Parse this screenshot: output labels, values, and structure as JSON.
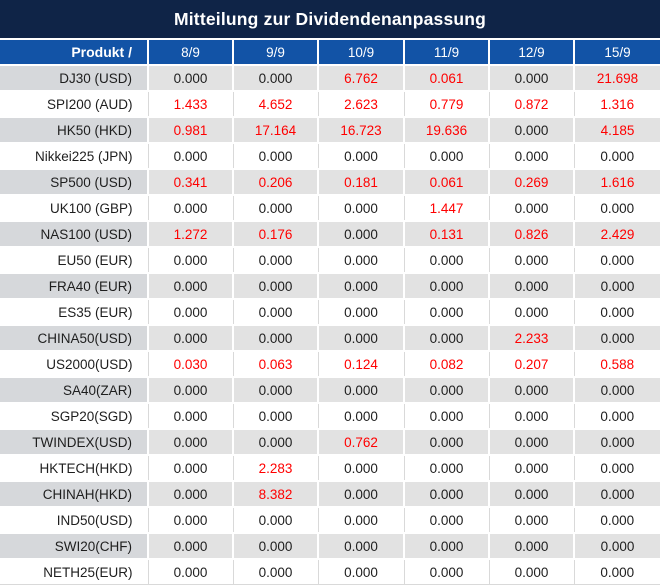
{
  "chart_data": {
    "type": "table",
    "title": "Mitteilung zur Dividendenanpassung",
    "columns": [
      "Produkt /",
      "8/9",
      "9/9",
      "10/9",
      "11/9",
      "12/9",
      "15/9"
    ],
    "rows": [
      {
        "product": "DJ30 (USD)",
        "values": [
          "0.000",
          "0.000",
          "6.762",
          "0.061",
          "0.000",
          "21.698"
        ],
        "red_flags": [
          false,
          false,
          true,
          true,
          false,
          true
        ]
      },
      {
        "product": "SPI200 (AUD)",
        "values": [
          "1.433",
          "4.652",
          "2.623",
          "0.779",
          "0.872",
          "1.316"
        ],
        "red_flags": [
          true,
          true,
          true,
          true,
          true,
          true
        ]
      },
      {
        "product": "HK50 (HKD)",
        "values": [
          "0.981",
          "17.164",
          "16.723",
          "19.636",
          "0.000",
          "4.185"
        ],
        "red_flags": [
          true,
          true,
          true,
          true,
          false,
          true
        ]
      },
      {
        "product": "Nikkei225 (JPN)",
        "values": [
          "0.000",
          "0.000",
          "0.000",
          "0.000",
          "0.000",
          "0.000"
        ],
        "red_flags": [
          false,
          false,
          false,
          false,
          false,
          false
        ]
      },
      {
        "product": "SP500 (USD)",
        "values": [
          "0.341",
          "0.206",
          "0.181",
          "0.061",
          "0.269",
          "1.616"
        ],
        "red_flags": [
          true,
          true,
          true,
          true,
          true,
          true
        ]
      },
      {
        "product": "UK100 (GBP)",
        "values": [
          "0.000",
          "0.000",
          "0.000",
          "1.447",
          "0.000",
          "0.000"
        ],
        "red_flags": [
          false,
          false,
          false,
          true,
          false,
          false
        ]
      },
      {
        "product": "NAS100 (USD)",
        "values": [
          "1.272",
          "0.176",
          "0.000",
          "0.131",
          "0.826",
          "2.429"
        ],
        "red_flags": [
          true,
          true,
          false,
          true,
          true,
          true
        ]
      },
      {
        "product": "EU50 (EUR)",
        "values": [
          "0.000",
          "0.000",
          "0.000",
          "0.000",
          "0.000",
          "0.000"
        ],
        "red_flags": [
          false,
          false,
          false,
          false,
          false,
          false
        ]
      },
      {
        "product": "FRA40 (EUR)",
        "values": [
          "0.000",
          "0.000",
          "0.000",
          "0.000",
          "0.000",
          "0.000"
        ],
        "red_flags": [
          false,
          false,
          false,
          false,
          false,
          false
        ]
      },
      {
        "product": "ES35 (EUR)",
        "values": [
          "0.000",
          "0.000",
          "0.000",
          "0.000",
          "0.000",
          "0.000"
        ],
        "red_flags": [
          false,
          false,
          false,
          false,
          false,
          false
        ]
      },
      {
        "product": "CHINA50(USD)",
        "values": [
          "0.000",
          "0.000",
          "0.000",
          "0.000",
          "2.233",
          "0.000"
        ],
        "red_flags": [
          false,
          false,
          false,
          false,
          true,
          false
        ]
      },
      {
        "product": "US2000(USD)",
        "values": [
          "0.030",
          "0.063",
          "0.124",
          "0.082",
          "0.207",
          "0.588"
        ],
        "red_flags": [
          true,
          true,
          true,
          true,
          true,
          true
        ]
      },
      {
        "product": "SA40(ZAR)",
        "values": [
          "0.000",
          "0.000",
          "0.000",
          "0.000",
          "0.000",
          "0.000"
        ],
        "red_flags": [
          false,
          false,
          false,
          false,
          false,
          false
        ]
      },
      {
        "product": "SGP20(SGD)",
        "values": [
          "0.000",
          "0.000",
          "0.000",
          "0.000",
          "0.000",
          "0.000"
        ],
        "red_flags": [
          false,
          false,
          false,
          false,
          false,
          false
        ]
      },
      {
        "product": "TWINDEX(USD)",
        "values": [
          "0.000",
          "0.000",
          "0.762",
          "0.000",
          "0.000",
          "0.000"
        ],
        "red_flags": [
          false,
          false,
          true,
          false,
          false,
          false
        ]
      },
      {
        "product": "HKTECH(HKD)",
        "values": [
          "0.000",
          "2.283",
          "0.000",
          "0.000",
          "0.000",
          "0.000"
        ],
        "red_flags": [
          false,
          true,
          false,
          false,
          false,
          false
        ]
      },
      {
        "product": "CHINAH(HKD)",
        "values": [
          "0.000",
          "8.382",
          "0.000",
          "0.000",
          "0.000",
          "0.000"
        ],
        "red_flags": [
          false,
          true,
          false,
          false,
          false,
          false
        ]
      },
      {
        "product": "IND50(USD)",
        "values": [
          "0.000",
          "0.000",
          "0.000",
          "0.000",
          "0.000",
          "0.000"
        ],
        "red_flags": [
          false,
          false,
          false,
          false,
          false,
          false
        ]
      },
      {
        "product": "SWI20(CHF)",
        "values": [
          "0.000",
          "0.000",
          "0.000",
          "0.000",
          "0.000",
          "0.000"
        ],
        "red_flags": [
          false,
          false,
          false,
          false,
          false,
          false
        ]
      },
      {
        "product": "NETH25(EUR)",
        "values": [
          "0.000",
          "0.000",
          "0.000",
          "0.000",
          "0.000",
          "0.000"
        ],
        "red_flags": [
          false,
          false,
          false,
          false,
          false,
          false
        ]
      }
    ],
    "layout": {
      "striped": true,
      "stripe_pattern": "odd-rows-gray-starting-first",
      "value_alignment": "center",
      "product_alignment": "right"
    }
  },
  "colors": {
    "title_bg": "#0f2447",
    "header_bg": "#1253a6",
    "header_text": "#ffffff",
    "row_gray_product_bg": "#d6d8db",
    "row_gray_value_bg": "#e2e2e2",
    "row_white_bg": "#ffffff",
    "value_red": "#ff0000",
    "value_dark": "#1e1e1e",
    "grid_line": "#d9d9d9"
  }
}
